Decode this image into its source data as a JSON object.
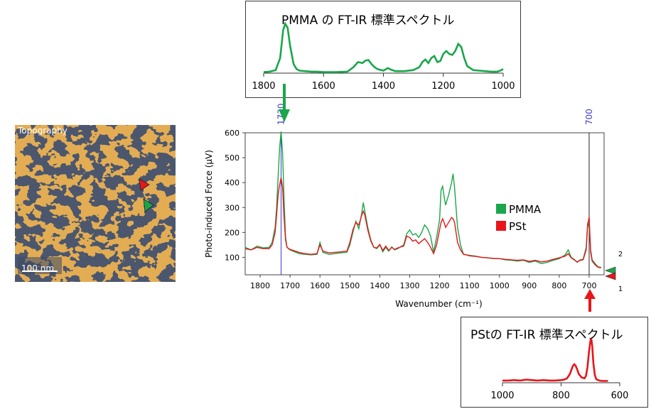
{
  "topography": {
    "label": "Topography",
    "scale_label": "100 nm"
  },
  "colors": {
    "pmma": "#1aa64a",
    "pst": "#e8151b",
    "marker_line": "#3c3cc8",
    "arrow_green": "#1aa64a",
    "arrow_red": "#e8151b"
  },
  "chart_data": [
    {
      "id": "pmma-reference",
      "type": "line",
      "title": "PMMA の FT-IR 標準スペクトル",
      "xlabel": "",
      "ylabel": "",
      "xlim": [
        1800,
        1000
      ],
      "ylim": [
        0,
        1
      ],
      "x_ticks": [
        "1800",
        "1600",
        "1400",
        "1200",
        "1000"
      ],
      "series": [
        {
          "name": "PMMA",
          "x": [
            1800,
            1780,
            1760,
            1745,
            1735,
            1728,
            1720,
            1712,
            1700,
            1690,
            1680,
            1660,
            1640,
            1620,
            1600,
            1560,
            1520,
            1500,
            1485,
            1470,
            1460,
            1450,
            1440,
            1430,
            1420,
            1400,
            1385,
            1375,
            1360,
            1330,
            1300,
            1280,
            1270,
            1260,
            1250,
            1240,
            1230,
            1220,
            1210,
            1200,
            1190,
            1180,
            1170,
            1160,
            1150,
            1140,
            1130,
            1120,
            1100,
            1080,
            1060,
            1040,
            1020,
            1010,
            1000
          ],
          "y": [
            0.02,
            0.03,
            0.06,
            0.3,
            0.85,
            0.98,
            0.9,
            0.55,
            0.18,
            0.08,
            0.05,
            0.04,
            0.03,
            0.03,
            0.02,
            0.02,
            0.03,
            0.12,
            0.22,
            0.2,
            0.25,
            0.26,
            0.18,
            0.12,
            0.08,
            0.05,
            0.1,
            0.07,
            0.04,
            0.04,
            0.06,
            0.12,
            0.22,
            0.27,
            0.2,
            0.3,
            0.34,
            0.22,
            0.24,
            0.38,
            0.44,
            0.38,
            0.36,
            0.44,
            0.58,
            0.52,
            0.3,
            0.14,
            0.06,
            0.05,
            0.04,
            0.03,
            0.03,
            0.05,
            0.08
          ]
        }
      ]
    },
    {
      "id": "pifm-spectrum",
      "type": "line",
      "title": "",
      "xlabel": "Wavenumber (cm⁻¹)",
      "ylabel": "Photo-induced Force (μV)",
      "xlim": [
        1850,
        650
      ],
      "ylim": [
        30,
        600
      ],
      "x_ticks": [
        "1800",
        "1700",
        "1600",
        "1500",
        "1400",
        "1300",
        "1200",
        "1100",
        "1000",
        "900",
        "800",
        "700"
      ],
      "y_ticks": [
        "100",
        "200",
        "300",
        "400",
        "500",
        "600"
      ],
      "markers": [
        {
          "x": 1730,
          "label": "1730"
        },
        {
          "x": 700,
          "label": "700"
        }
      ],
      "right_labels": {
        "upper": "2",
        "lower": "1"
      },
      "legend": {
        "position": "right",
        "entries": [
          "PMMA",
          "PSt"
        ]
      },
      "series": [
        {
          "name": "PMMA",
          "color": "#1aa64a",
          "x": [
            1850,
            1830,
            1810,
            1790,
            1770,
            1760,
            1750,
            1745,
            1740,
            1735,
            1730,
            1725,
            1720,
            1715,
            1710,
            1700,
            1690,
            1670,
            1650,
            1630,
            1610,
            1600,
            1590,
            1570,
            1550,
            1530,
            1510,
            1500,
            1490,
            1480,
            1470,
            1460,
            1455,
            1450,
            1440,
            1430,
            1420,
            1410,
            1400,
            1390,
            1380,
            1370,
            1360,
            1350,
            1340,
            1320,
            1310,
            1300,
            1290,
            1280,
            1270,
            1260,
            1250,
            1240,
            1230,
            1220,
            1210,
            1200,
            1195,
            1190,
            1185,
            1180,
            1175,
            1170,
            1160,
            1155,
            1150,
            1145,
            1140,
            1130,
            1120,
            1110,
            1100,
            1080,
            1060,
            1040,
            1020,
            1000,
            980,
            960,
            940,
            920,
            900,
            880,
            860,
            840,
            820,
            800,
            780,
            770,
            760,
            750,
            740,
            730,
            720,
            710,
            705,
            700,
            695,
            690,
            680,
            670,
            660
          ],
          "y": [
            140,
            130,
            145,
            138,
            140,
            160,
            220,
            300,
            420,
            540,
            605,
            520,
            330,
            180,
            140,
            130,
            125,
            115,
            112,
            110,
            112,
            160,
            120,
            112,
            115,
            118,
            120,
            150,
            200,
            245,
            215,
            280,
            320,
            285,
            220,
            170,
            140,
            135,
            150,
            122,
            140,
            125,
            142,
            130,
            135,
            150,
            195,
            210,
            190,
            195,
            180,
            200,
            230,
            215,
            185,
            120,
            180,
            250,
            370,
            385,
            345,
            310,
            330,
            350,
            400,
            435,
            380,
            300,
            220,
            150,
            112,
            110,
            108,
            105,
            100,
            98,
            95,
            95,
            90,
            88,
            85,
            88,
            80,
            85,
            75,
            80,
            88,
            95,
            110,
            130,
            100,
            92,
            80,
            90,
            92,
            140,
            240,
            220,
            130,
            90,
            75,
            62,
            60
          ]
        },
        {
          "name": "PSt",
          "color": "#e8151b",
          "x": [
            1850,
            1830,
            1810,
            1790,
            1770,
            1760,
            1750,
            1745,
            1740,
            1735,
            1730,
            1725,
            1720,
            1715,
            1710,
            1700,
            1690,
            1670,
            1650,
            1630,
            1610,
            1600,
            1590,
            1570,
            1550,
            1530,
            1510,
            1500,
            1490,
            1480,
            1470,
            1460,
            1455,
            1450,
            1440,
            1430,
            1420,
            1410,
            1400,
            1390,
            1380,
            1370,
            1360,
            1350,
            1340,
            1320,
            1310,
            1300,
            1290,
            1280,
            1270,
            1260,
            1250,
            1240,
            1230,
            1220,
            1210,
            1200,
            1195,
            1190,
            1185,
            1180,
            1175,
            1170,
            1160,
            1155,
            1150,
            1145,
            1140,
            1130,
            1120,
            1110,
            1100,
            1080,
            1060,
            1040,
            1020,
            1000,
            980,
            960,
            940,
            920,
            900,
            880,
            860,
            840,
            820,
            800,
            780,
            770,
            760,
            750,
            740,
            730,
            720,
            710,
            705,
            700,
            695,
            690,
            680,
            670,
            660
          ],
          "y": [
            135,
            130,
            140,
            135,
            135,
            150,
            200,
            270,
            350,
            390,
            420,
            380,
            260,
            170,
            140,
            132,
            128,
            120,
            115,
            112,
            115,
            150,
            125,
            118,
            120,
            122,
            125,
            160,
            210,
            240,
            230,
            270,
            285,
            270,
            210,
            165,
            140,
            138,
            152,
            128,
            145,
            128,
            140,
            132,
            138,
            145,
            185,
            180,
            165,
            170,
            155,
            165,
            175,
            160,
            140,
            115,
            150,
            210,
            240,
            255,
            240,
            220,
            230,
            240,
            260,
            255,
            240,
            200,
            160,
            130,
            112,
            110,
            106,
            104,
            100,
            98,
            96,
            95,
            92,
            90,
            88,
            90,
            84,
            88,
            82,
            85,
            92,
            98,
            105,
            115,
            98,
            90,
            82,
            88,
            90,
            130,
            230,
            262,
            120,
            85,
            70,
            60,
            58
          ]
        }
      ]
    },
    {
      "id": "pst-reference",
      "type": "line",
      "title": "PStの FT-IR 標準スペクトル",
      "xlabel": "",
      "ylabel": "",
      "xlim": [
        1000,
        600
      ],
      "ylim": [
        0,
        1
      ],
      "x_ticks": [
        "1000",
        "800",
        "600"
      ],
      "series": [
        {
          "name": "PSt",
          "x": [
            1000,
            980,
            960,
            940,
            920,
            900,
            880,
            860,
            840,
            820,
            800,
            790,
            780,
            770,
            760,
            755,
            750,
            745,
            740,
            730,
            720,
            715,
            710,
            705,
            700,
            697,
            694,
            690,
            685,
            680,
            670,
            660,
            650,
            640
          ],
          "y": [
            0.05,
            0.05,
            0.06,
            0.05,
            0.07,
            0.06,
            0.05,
            0.06,
            0.05,
            0.05,
            0.06,
            0.07,
            0.1,
            0.2,
            0.38,
            0.42,
            0.38,
            0.3,
            0.2,
            0.12,
            0.1,
            0.16,
            0.35,
            0.7,
            0.95,
            1.0,
            0.85,
            0.45,
            0.18,
            0.08,
            0.05,
            0.04,
            0.04,
            0.04
          ]
        }
      ]
    }
  ],
  "legend": {
    "pmma": "PMMA",
    "pst": "PSt"
  }
}
